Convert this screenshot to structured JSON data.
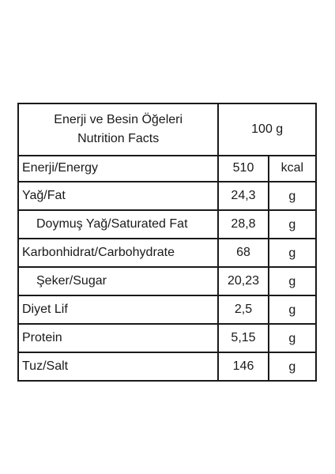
{
  "header": {
    "title_line1": "Enerji ve Besin Öğeleri",
    "title_line2": "Nutrition Facts",
    "serving": "100 g"
  },
  "rows": [
    {
      "name": "Enerji/Energy",
      "value": "510",
      "unit": "kcal"
    },
    {
      "name": "Yağ/Fat",
      "value": "24,3",
      "unit": "g"
    },
    {
      "name": "Doymuş Yağ/Saturated Fat",
      "value": "28,8",
      "unit": "g"
    },
    {
      "name": "Karbonhidrat/Carbohydrate",
      "value": "68",
      "unit": "g"
    },
    {
      "name": "Şeker/Sugar",
      "value": "20,23",
      "unit": "g"
    },
    {
      "name": "Diyet Lif",
      "value": "2,5",
      "unit": "g"
    },
    {
      "name": "Protein",
      "value": "5,15",
      "unit": "g"
    },
    {
      "name": "Tuz/Salt",
      "value": "146",
      "unit": "g"
    }
  ]
}
